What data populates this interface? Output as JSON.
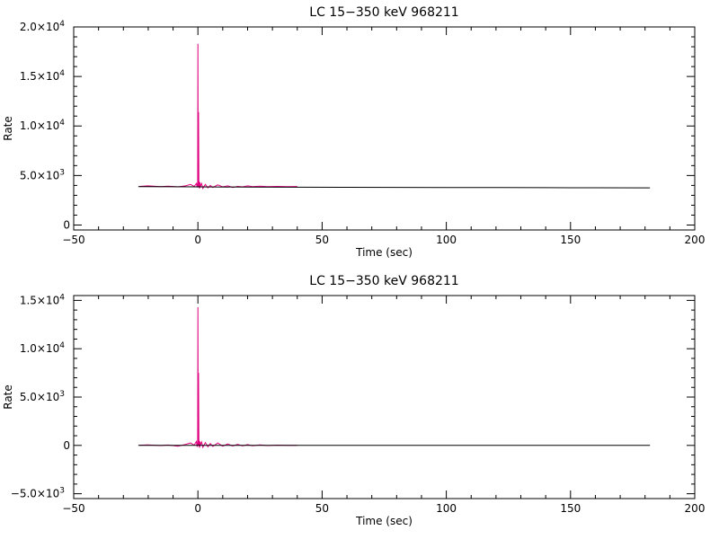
{
  "chart_data": [
    {
      "type": "line",
      "title": "LC 15−350 keV  968211",
      "xlabel": "Time (sec)",
      "ylabel": "Rate",
      "xlim": [
        -50,
        200
      ],
      "ylim": [
        -500,
        20000
      ],
      "x_ticks": [
        {
          "value": -50,
          "label": "−50"
        },
        {
          "value": 0,
          "label": "0"
        },
        {
          "value": 50,
          "label": "50"
        },
        {
          "value": 100,
          "label": "100"
        },
        {
          "value": 150,
          "label": "150"
        },
        {
          "value": 200,
          "label": "200"
        }
      ],
      "y_ticks": [
        {
          "value": 0,
          "mant": "0",
          "exp": ""
        },
        {
          "value": 5000,
          "mant": "5.0×10",
          "exp": "3"
        },
        {
          "value": 10000,
          "mant": "1.0×10",
          "exp": "4"
        },
        {
          "value": 15000,
          "mant": "1.5×10",
          "exp": "4"
        },
        {
          "value": 20000,
          "mant": "2.0×10",
          "exp": "4"
        }
      ],
      "series": [
        {
          "color": "#e0007f",
          "x": [
            -23.5,
            -20,
            -15,
            -12,
            -8,
            -5,
            -3,
            -1.5,
            -0.6,
            -0.3,
            -0.1,
            0.0,
            0.1,
            0.25,
            0.4,
            0.5,
            0.6,
            0.8,
            1.0,
            1.5,
            2,
            3,
            4,
            5,
            6,
            8,
            10,
            12,
            14,
            16,
            18,
            20,
            22,
            25,
            28,
            32,
            36,
            40
          ],
          "y": [
            3900,
            3950,
            3880,
            3920,
            3850,
            3950,
            4100,
            3900,
            4200,
            3800,
            4300,
            18300,
            3900,
            11400,
            3800,
            4400,
            3700,
            4300,
            3900,
            4200,
            3700,
            4100,
            3750,
            4000,
            3800,
            4050,
            3850,
            3950,
            3800,
            3900,
            3850,
            3950,
            3880,
            3920,
            3870,
            3900,
            3880,
            3890
          ]
        },
        {
          "color": "#000000",
          "x": [
            -24,
            -10,
            0,
            20,
            40,
            60,
            80,
            100,
            120,
            140,
            160,
            182
          ],
          "y": [
            3880,
            3860,
            3850,
            3830,
            3820,
            3810,
            3800,
            3790,
            3780,
            3770,
            3760,
            3750
          ]
        }
      ]
    },
    {
      "type": "line",
      "title": "LC 15−350 keV  968211",
      "xlabel": "Time (sec)",
      "ylabel": "Rate",
      "xlim": [
        -50,
        200
      ],
      "ylim": [
        -5500,
        15500
      ],
      "x_ticks": [
        {
          "value": -50,
          "label": "−50"
        },
        {
          "value": 0,
          "label": "0"
        },
        {
          "value": 50,
          "label": "50"
        },
        {
          "value": 100,
          "label": "100"
        },
        {
          "value": 150,
          "label": "150"
        },
        {
          "value": 200,
          "label": "200"
        }
      ],
      "y_ticks": [
        {
          "value": -5000,
          "mant": "−5.0×10",
          "exp": "3"
        },
        {
          "value": 0,
          "mant": "0",
          "exp": ""
        },
        {
          "value": 5000,
          "mant": "5.0×10",
          "exp": "3"
        },
        {
          "value": 10000,
          "mant": "1.0×10",
          "exp": "4"
        },
        {
          "value": 15000,
          "mant": "1.5×10",
          "exp": "4"
        }
      ],
      "series": [
        {
          "color": "#e0007f",
          "x": [
            -23.5,
            -20,
            -15,
            -12,
            -8,
            -5,
            -3,
            -1.5,
            -0.6,
            -0.3,
            -0.1,
            0.0,
            0.1,
            0.25,
            0.4,
            0.5,
            0.6,
            0.8,
            1.0,
            1.5,
            2,
            3,
            4,
            5,
            6,
            8,
            10,
            12,
            14,
            16,
            18,
            20,
            22,
            25,
            28,
            32,
            36,
            40
          ],
          "y": [
            20,
            60,
            -20,
            40,
            -80,
            100,
            250,
            30,
            400,
            -150,
            450,
            14300,
            50,
            7500,
            -100,
            500,
            -250,
            400,
            40,
            350,
            -200,
            300,
            -150,
            200,
            -100,
            250,
            -80,
            150,
            -60,
            100,
            -50,
            80,
            -40,
            60,
            -20,
            30,
            10,
            0
          ]
        },
        {
          "color": "#000000",
          "x": [
            -24,
            182
          ],
          "y": [
            0,
            0
          ]
        }
      ]
    }
  ]
}
